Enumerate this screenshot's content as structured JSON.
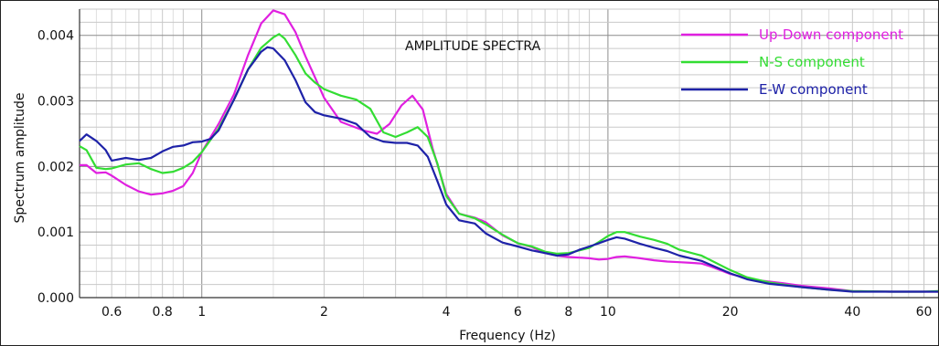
{
  "chart_data": {
    "type": "line",
    "title": "AMPLITUDE SPECTRA",
    "xlabel": "Frequency (Hz)",
    "ylabel": "Spectrum amplitude",
    "x_scale": "log",
    "xlim": [
      0.5,
      65
    ],
    "ylim": [
      0,
      0.0044
    ],
    "x_ticks": [
      0.6,
      0.8,
      1,
      2,
      4,
      6,
      8,
      10,
      20,
      40,
      60
    ],
    "x_tick_labels": [
      "0.6",
      "0.8",
      "1",
      "2",
      "4",
      "6",
      "8",
      "10",
      "20",
      "40",
      "60"
    ],
    "y_ticks": [
      0,
      0.001,
      0.002,
      0.003,
      0.004
    ],
    "y_tick_labels": [
      "0.000",
      "0.001",
      "0.002",
      "0.003",
      "0.004"
    ],
    "grid": true,
    "legend_position": "top-right",
    "series": [
      {
        "name": "Up-Down component",
        "color": "#e020e0",
        "points": [
          [
            0.5,
            0.00202
          ],
          [
            0.52,
            0.00202
          ],
          [
            0.55,
            0.0019
          ],
          [
            0.58,
            0.00191
          ],
          [
            0.6,
            0.00186
          ],
          [
            0.65,
            0.00172
          ],
          [
            0.7,
            0.00162
          ],
          [
            0.75,
            0.00157
          ],
          [
            0.8,
            0.00159
          ],
          [
            0.85,
            0.00163
          ],
          [
            0.9,
            0.0017
          ],
          [
            0.95,
            0.0019
          ],
          [
            1.0,
            0.00222
          ],
          [
            1.1,
            0.00265
          ],
          [
            1.2,
            0.0031
          ],
          [
            1.3,
            0.0037
          ],
          [
            1.4,
            0.00418
          ],
          [
            1.5,
            0.00438
          ],
          [
            1.6,
            0.00432
          ],
          [
            1.7,
            0.00405
          ],
          [
            1.8,
            0.00368
          ],
          [
            1.9,
            0.00336
          ],
          [
            2.0,
            0.00305
          ],
          [
            2.2,
            0.00268
          ],
          [
            2.5,
            0.00255
          ],
          [
            2.7,
            0.0025
          ],
          [
            2.9,
            0.00265
          ],
          [
            3.1,
            0.00293
          ],
          [
            3.3,
            0.00308
          ],
          [
            3.5,
            0.00287
          ],
          [
            3.7,
            0.00228
          ],
          [
            4.0,
            0.00158
          ],
          [
            4.3,
            0.00128
          ],
          [
            4.7,
            0.00122
          ],
          [
            5.0,
            0.00115
          ],
          [
            5.5,
            0.00095
          ],
          [
            6.0,
            0.00083
          ],
          [
            6.5,
            0.00077
          ],
          [
            7.0,
            0.00068
          ],
          [
            7.5,
            0.00064
          ],
          [
            8.0,
            0.00062
          ],
          [
            8.5,
            0.00061
          ],
          [
            9.0,
            0.0006
          ],
          [
            9.5,
            0.00058
          ],
          [
            10.0,
            0.00059
          ],
          [
            10.5,
            0.00062
          ],
          [
            11.0,
            0.00063
          ],
          [
            12.0,
            0.0006
          ],
          [
            13.0,
            0.00057
          ],
          [
            14.0,
            0.00055
          ],
          [
            15.0,
            0.00054
          ],
          [
            16.0,
            0.00053
          ],
          [
            17.0,
            0.00052
          ],
          [
            18.0,
            0.00047
          ],
          [
            20.0,
            0.00036
          ],
          [
            23.0,
            0.00027
          ],
          [
            27.0,
            0.00022
          ],
          [
            30.0,
            0.00018
          ],
          [
            35.0,
            0.00014
          ],
          [
            40.0,
            0.0001
          ],
          [
            50.0,
            9e-05
          ],
          [
            60.0,
            9e-05
          ],
          [
            65.0,
            9e-05
          ]
        ]
      },
      {
        "name": "N-S component",
        "color": "#33dd33",
        "points": [
          [
            0.5,
            0.00231
          ],
          [
            0.52,
            0.00225
          ],
          [
            0.55,
            0.00198
          ],
          [
            0.58,
            0.00196
          ],
          [
            0.6,
            0.00197
          ],
          [
            0.65,
            0.00203
          ],
          [
            0.7,
            0.00205
          ],
          [
            0.75,
            0.00196
          ],
          [
            0.8,
            0.0019
          ],
          [
            0.85,
            0.00192
          ],
          [
            0.9,
            0.00198
          ],
          [
            0.95,
            0.00207
          ],
          [
            1.0,
            0.00222
          ],
          [
            1.1,
            0.00258
          ],
          [
            1.2,
            0.00302
          ],
          [
            1.3,
            0.00348
          ],
          [
            1.4,
            0.00381
          ],
          [
            1.5,
            0.00397
          ],
          [
            1.55,
            0.00402
          ],
          [
            1.6,
            0.00395
          ],
          [
            1.7,
            0.0037
          ],
          [
            1.8,
            0.00342
          ],
          [
            1.9,
            0.00328
          ],
          [
            2.0,
            0.00318
          ],
          [
            2.2,
            0.00308
          ],
          [
            2.4,
            0.00302
          ],
          [
            2.6,
            0.00288
          ],
          [
            2.8,
            0.00252
          ],
          [
            3.0,
            0.00245
          ],
          [
            3.2,
            0.00252
          ],
          [
            3.4,
            0.0026
          ],
          [
            3.6,
            0.00245
          ],
          [
            3.8,
            0.00205
          ],
          [
            4.0,
            0.00155
          ],
          [
            4.3,
            0.00128
          ],
          [
            4.7,
            0.00121
          ],
          [
            5.0,
            0.00112
          ],
          [
            5.5,
            0.00096
          ],
          [
            6.0,
            0.00083
          ],
          [
            6.5,
            0.00078
          ],
          [
            7.0,
            0.0007
          ],
          [
            7.5,
            0.00067
          ],
          [
            8.0,
            0.00068
          ],
          [
            8.5,
            0.00072
          ],
          [
            9.0,
            0.00076
          ],
          [
            9.5,
            0.00085
          ],
          [
            10.0,
            0.00094
          ],
          [
            10.5,
            0.001
          ],
          [
            11.0,
            0.001
          ],
          [
            12.0,
            0.00093
          ],
          [
            13.0,
            0.00088
          ],
          [
            14.0,
            0.00082
          ],
          [
            15.0,
            0.00073
          ],
          [
            17.0,
            0.00064
          ],
          [
            20.0,
            0.00042
          ],
          [
            22.0,
            0.00031
          ],
          [
            25.0,
            0.00023
          ],
          [
            30.0,
            0.00016
          ],
          [
            35.0,
            0.00012
          ],
          [
            40.0,
            0.0001
          ],
          [
            50.0,
            9e-05
          ],
          [
            60.0,
            9e-05
          ],
          [
            65.0,
            0.0001
          ]
        ]
      },
      {
        "name": "E-W component",
        "color": "#1e22a8",
        "points": [
          [
            0.5,
            0.00239
          ],
          [
            0.52,
            0.00249
          ],
          [
            0.55,
            0.00239
          ],
          [
            0.58,
            0.00225
          ],
          [
            0.6,
            0.00209
          ],
          [
            0.65,
            0.00213
          ],
          [
            0.7,
            0.0021
          ],
          [
            0.75,
            0.00213
          ],
          [
            0.8,
            0.00223
          ],
          [
            0.85,
            0.0023
          ],
          [
            0.9,
            0.00232
          ],
          [
            0.95,
            0.00237
          ],
          [
            1.0,
            0.00238
          ],
          [
            1.05,
            0.00242
          ],
          [
            1.1,
            0.00255
          ],
          [
            1.2,
            0.00302
          ],
          [
            1.3,
            0.00348
          ],
          [
            1.4,
            0.00375
          ],
          [
            1.45,
            0.00382
          ],
          [
            1.5,
            0.0038
          ],
          [
            1.6,
            0.00362
          ],
          [
            1.7,
            0.00332
          ],
          [
            1.8,
            0.00298
          ],
          [
            1.9,
            0.00283
          ],
          [
            2.0,
            0.00278
          ],
          [
            2.2,
            0.00273
          ],
          [
            2.4,
            0.00265
          ],
          [
            2.6,
            0.00245
          ],
          [
            2.8,
            0.00238
          ],
          [
            3.0,
            0.00236
          ],
          [
            3.2,
            0.00236
          ],
          [
            3.4,
            0.00232
          ],
          [
            3.6,
            0.00215
          ],
          [
            3.8,
            0.00178
          ],
          [
            4.0,
            0.00142
          ],
          [
            4.3,
            0.00118
          ],
          [
            4.7,
            0.00113
          ],
          [
            5.0,
            0.00098
          ],
          [
            5.5,
            0.00084
          ],
          [
            6.0,
            0.00078
          ],
          [
            6.5,
            0.00072
          ],
          [
            7.0,
            0.00068
          ],
          [
            7.5,
            0.00064
          ],
          [
            8.0,
            0.00066
          ],
          [
            8.5,
            0.00073
          ],
          [
            9.0,
            0.00078
          ],
          [
            9.5,
            0.00083
          ],
          [
            10.0,
            0.00088
          ],
          [
            10.5,
            0.00092
          ],
          [
            11.0,
            0.0009
          ],
          [
            12.0,
            0.00082
          ],
          [
            13.0,
            0.00076
          ],
          [
            14.0,
            0.00071
          ],
          [
            15.0,
            0.00064
          ],
          [
            17.0,
            0.00056
          ],
          [
            20.0,
            0.00037
          ],
          [
            22.0,
            0.00028
          ],
          [
            25.0,
            0.00021
          ],
          [
            30.0,
            0.00016
          ],
          [
            35.0,
            0.00012
          ],
          [
            40.0,
            9e-05
          ],
          [
            50.0,
            9e-05
          ],
          [
            60.0,
            9e-05
          ],
          [
            65.0,
            9e-05
          ]
        ]
      }
    ]
  }
}
